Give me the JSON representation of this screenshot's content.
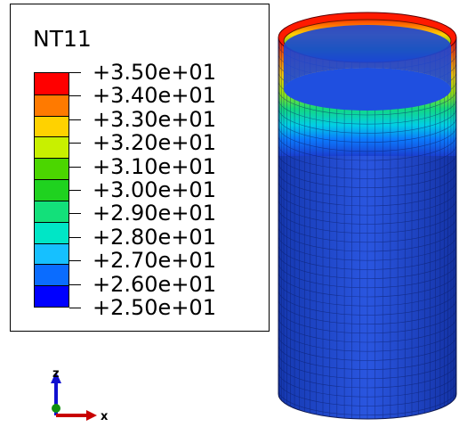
{
  "legend": {
    "title": "NT11",
    "labels": [
      "+3.50e+01",
      "+3.40e+01",
      "+3.30e+01",
      "+3.20e+01",
      "+3.10e+01",
      "+3.00e+01",
      "+2.90e+01",
      "+2.80e+01",
      "+2.70e+01",
      "+2.60e+01",
      "+2.50e+01"
    ],
    "colors": [
      "#ff0000",
      "#ff7a00",
      "#ffd200",
      "#c8f000",
      "#4bd600",
      "#1fd21f",
      "#13e07a",
      "#00e6c6",
      "#16c0ff",
      "#0a6cff",
      "#0000ff"
    ]
  },
  "triad": {
    "z_label": "z",
    "x_label": "x"
  }
}
